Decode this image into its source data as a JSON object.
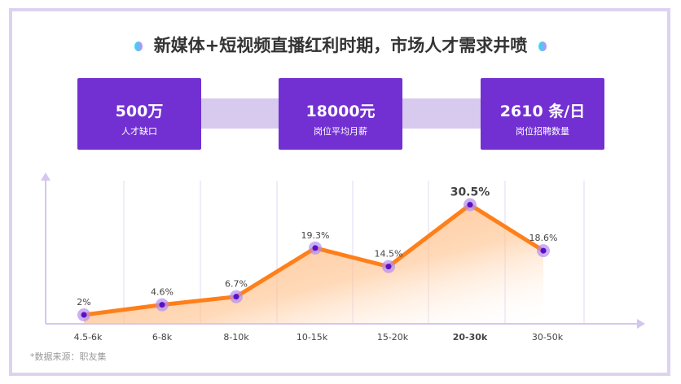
{
  "title": "新媒体+短视频直播红利时期，市场人才需求井喷",
  "stats": [
    {
      "value": "500万",
      "label": "人才缺口"
    },
    {
      "value": "18000元",
      "label": "岗位平均月薪"
    },
    {
      "value": "2610 条/日",
      "label": "岗位招聘数量"
    }
  ],
  "colors": {
    "accent": "#7230d3",
    "line": "#ff7f1a",
    "point": "#5a0fc8",
    "grid": "#ddd2f0"
  },
  "chart_data": {
    "type": "area",
    "categories": [
      "4.5-6k",
      "6-8k",
      "8-10k",
      "10-15k",
      "15-20k",
      "20-30k",
      "30-50k"
    ],
    "values": [
      2,
      4.6,
      6.7,
      19.3,
      14.5,
      30.5,
      18.6
    ],
    "data_labels": [
      "2%",
      "4.6%",
      "6.7%",
      "19.3%",
      "14.5%",
      "30.5%",
      "18.6%"
    ],
    "highlight_index": 5,
    "grid": "vertical"
  },
  "source": "*数据来源：职友集"
}
